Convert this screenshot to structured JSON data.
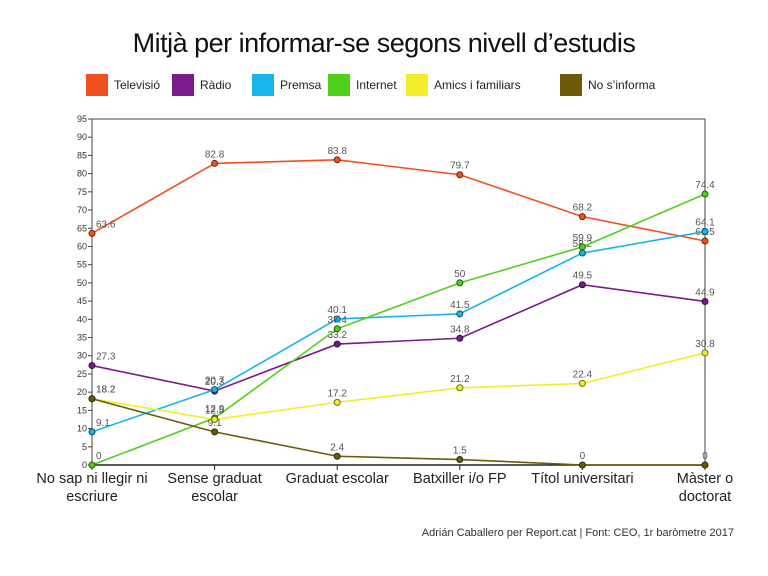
{
  "chart_data": {
    "type": "line",
    "title": "Mitjà per informar-se segons nivell d’estudis",
    "credit": "Adrián Caballero per Report.cat | Font: CEO, 1r baròmetre 2017",
    "categories": [
      [
        "No sap ni llegir ni",
        "escriure"
      ],
      [
        "Sense graduat",
        "escolar"
      ],
      [
        "Graduat escolar"
      ],
      [
        "Batxiller i/o FP"
      ],
      [
        "Títol universitari"
      ],
      [
        "Màster o",
        "doctorat"
      ]
    ],
    "ylim": [
      0,
      95
    ],
    "yticks": [
      0,
      5,
      10,
      15,
      20,
      25,
      30,
      35,
      40,
      45,
      50,
      55,
      60,
      65,
      70,
      75,
      80,
      85,
      90,
      95
    ],
    "legend_position": "top",
    "series": [
      {
        "name": "Televisió",
        "color": "#f24f1e",
        "values": [
          63.6,
          82.8,
          83.8,
          79.7,
          68.2,
          61.5
        ]
      },
      {
        "name": "Ràdio",
        "color": "#7a1a8b",
        "values": [
          27.3,
          20.3,
          33.2,
          34.8,
          49.5,
          44.9
        ]
      },
      {
        "name": "Premsa",
        "color": "#19b4ea",
        "values": [
          9.1,
          20.7,
          40.1,
          41.5,
          58.2,
          64.1
        ]
      },
      {
        "name": "Internet",
        "color": "#4fd11b",
        "values": [
          0,
          12.9,
          37.4,
          50,
          59.9,
          74.4
        ]
      },
      {
        "name": "Amics i familiars",
        "color": "#f4ee2a",
        "values": [
          18.2,
          12.5,
          17.2,
          21.2,
          22.4,
          30.8
        ]
      },
      {
        "name": "No s’informa",
        "color": "#6b5a0a",
        "values": [
          18.2,
          9.1,
          2.4,
          1.5,
          0,
          0
        ]
      }
    ]
  }
}
